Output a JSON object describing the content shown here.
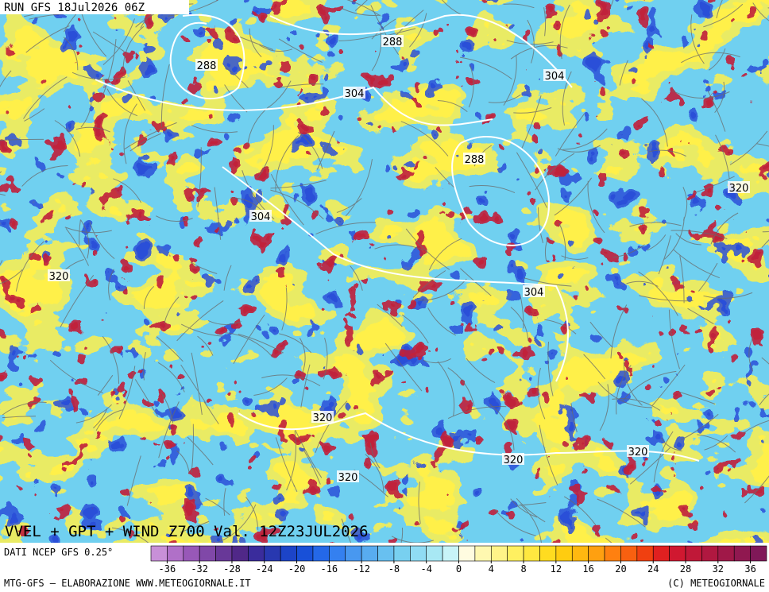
{
  "header": {
    "run": "RUN GFS 18Jul2026 06Z"
  },
  "map": {
    "title": "VVEL + GPT + WIND Z700 Val. 12Z23JUL2026",
    "contour_labels": [
      "288",
      "288",
      "304",
      "304",
      "288",
      "320",
      "304",
      "320",
      "304",
      "320",
      "320",
      "320",
      "320"
    ]
  },
  "footer": {
    "source": "DATI NCEP GFS 0.25°",
    "credit_left": "MTG-GFS — ELABORAZIONE WWW.METEOGIORNALE.IT",
    "credit_right": "(C) METEOGIORNALE"
  },
  "colorbar": {
    "lim": [
      -38,
      38
    ],
    "ticks": [
      -36,
      -32,
      -28,
      -24,
      -20,
      -16,
      -12,
      -8,
      -4,
      0,
      4,
      8,
      12,
      16,
      20,
      24,
      28,
      32,
      36
    ],
    "colors": [
      "#c890d8",
      "#b070c8",
      "#9858b8",
      "#8048a8",
      "#683898",
      "#502888",
      "#3a2c9c",
      "#2838b0",
      "#1c44c8",
      "#1850d8",
      "#2468e8",
      "#3480f0",
      "#4898f0",
      "#58acf0",
      "#68c0f0",
      "#78d0f0",
      "#90dcf4",
      "#a8e8f4",
      "#c8f4f8",
      "#fffce0",
      "#fff8b0",
      "#fff488",
      "#fff060",
      "#ffe840",
      "#ffdc20",
      "#ffcc10",
      "#ffb810",
      "#ffa010",
      "#ff8010",
      "#f86010",
      "#f04010",
      "#e02020",
      "#d01830",
      "#c01838",
      "#b01840",
      "#a01848",
      "#901850",
      "#801858"
    ]
  }
}
